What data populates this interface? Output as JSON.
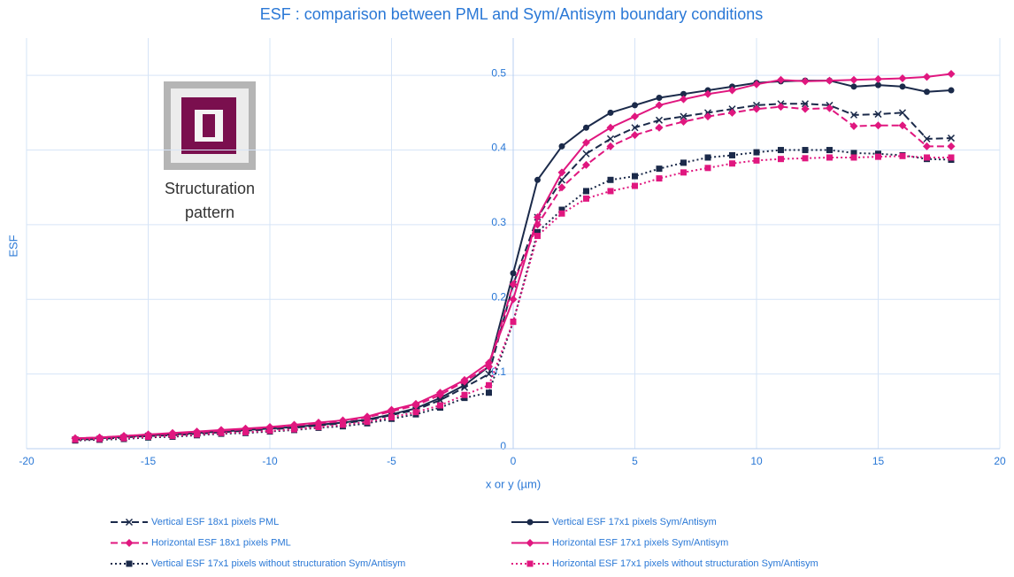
{
  "chart_data": {
    "type": "line",
    "title": "ESF : comparison between PML and Sym/Antisym boundary conditions",
    "xlabel": "x or y (µm)",
    "ylabel": "ESF",
    "annotation": [
      "Structuration",
      "pattern"
    ],
    "xlim": [
      -20,
      20
    ],
    "xticks": [
      -20,
      -15,
      -10,
      -5,
      0,
      5,
      10,
      15,
      20
    ],
    "ylim": [
      0,
      0.55
    ],
    "yticks": [
      0,
      0.1,
      0.2,
      0.3,
      0.4,
      0.5
    ],
    "grid": true,
    "legend": "bottom",
    "x": [
      -18,
      -17,
      -16,
      -15,
      -14,
      -13,
      -12,
      -11,
      -10,
      -9,
      -8,
      -7,
      -6,
      -5,
      -4,
      -3,
      -2,
      -1,
      0,
      1,
      2,
      3,
      4,
      5,
      6,
      7,
      8,
      9,
      10,
      11,
      12,
      13,
      14,
      15,
      16,
      17,
      18
    ],
    "series": [
      {
        "name": "Vertical ESF 18x1 pixels PML",
        "color": "#1b2a4a",
        "dash": "dash",
        "marker": "x",
        "values": [
          0.012,
          0.013,
          0.015,
          0.017,
          0.018,
          0.02,
          0.022,
          0.024,
          0.026,
          0.028,
          0.031,
          0.034,
          0.038,
          0.045,
          0.052,
          0.065,
          0.082,
          0.1,
          0.22,
          0.31,
          0.36,
          0.395,
          0.415,
          0.43,
          0.44,
          0.445,
          0.45,
          0.455,
          0.46,
          0.462,
          0.462,
          0.46,
          0.447,
          0.448,
          0.45,
          0.415,
          0.416
        ]
      },
      {
        "name": "Vertical ESF 17x1 pixels Sym/Antisym",
        "color": "#1b2a4a",
        "dash": "solid",
        "marker": "circle",
        "values": [
          0.013,
          0.014,
          0.016,
          0.018,
          0.019,
          0.021,
          0.023,
          0.025,
          0.027,
          0.029,
          0.032,
          0.035,
          0.039,
          0.046,
          0.054,
          0.068,
          0.085,
          0.11,
          0.235,
          0.36,
          0.405,
          0.43,
          0.45,
          0.46,
          0.47,
          0.475,
          0.48,
          0.485,
          0.49,
          0.492,
          0.493,
          0.493,
          0.485,
          0.487,
          0.485,
          0.478,
          0.48
        ]
      },
      {
        "name": "Horizontal ESF 18x1 pixels PML",
        "color": "#e0177f",
        "dash": "dash",
        "marker": "diamond",
        "values": [
          0.014,
          0.015,
          0.017,
          0.019,
          0.02,
          0.022,
          0.024,
          0.026,
          0.028,
          0.031,
          0.034,
          0.037,
          0.042,
          0.05,
          0.058,
          0.072,
          0.09,
          0.11,
          0.22,
          0.3,
          0.35,
          0.38,
          0.405,
          0.42,
          0.43,
          0.438,
          0.445,
          0.45,
          0.455,
          0.458,
          0.455,
          0.456,
          0.432,
          0.433,
          0.433,
          0.405,
          0.405
        ]
      },
      {
        "name": "Horizontal ESF 17x1 pixels Sym/Antisym",
        "color": "#e0177f",
        "dash": "solid",
        "marker": "diamond",
        "values": [
          0.014,
          0.015,
          0.017,
          0.019,
          0.021,
          0.023,
          0.025,
          0.027,
          0.029,
          0.032,
          0.035,
          0.038,
          0.043,
          0.052,
          0.06,
          0.075,
          0.092,
          0.115,
          0.2,
          0.31,
          0.37,
          0.41,
          0.43,
          0.445,
          0.46,
          0.468,
          0.475,
          0.48,
          0.488,
          0.494,
          0.492,
          0.493,
          0.494,
          0.495,
          0.496,
          0.498,
          0.502
        ]
      },
      {
        "name": "Vertical ESF 17x1 pixels without structuration Sym/Antisym",
        "color": "#1b2a4a",
        "dash": "dot",
        "marker": "square",
        "values": [
          0.011,
          0.012,
          0.013,
          0.015,
          0.016,
          0.018,
          0.02,
          0.021,
          0.023,
          0.025,
          0.028,
          0.03,
          0.034,
          0.04,
          0.046,
          0.055,
          0.068,
          0.075,
          0.17,
          0.29,
          0.32,
          0.345,
          0.36,
          0.365,
          0.375,
          0.383,
          0.39,
          0.393,
          0.397,
          0.4,
          0.4,
          0.4,
          0.396,
          0.395,
          0.393,
          0.388,
          0.387
        ]
      },
      {
        "name": "Horizontal ESF 17x1 pixels without structuration Sym/Antisym",
        "color": "#e0177f",
        "dash": "dot",
        "marker": "square",
        "values": [
          0.012,
          0.013,
          0.014,
          0.016,
          0.017,
          0.019,
          0.021,
          0.022,
          0.024,
          0.026,
          0.029,
          0.032,
          0.036,
          0.042,
          0.049,
          0.058,
          0.072,
          0.085,
          0.17,
          0.285,
          0.315,
          0.335,
          0.345,
          0.352,
          0.362,
          0.37,
          0.376,
          0.382,
          0.386,
          0.388,
          0.389,
          0.39,
          0.39,
          0.391,
          0.392,
          0.39,
          0.39
        ]
      }
    ]
  }
}
